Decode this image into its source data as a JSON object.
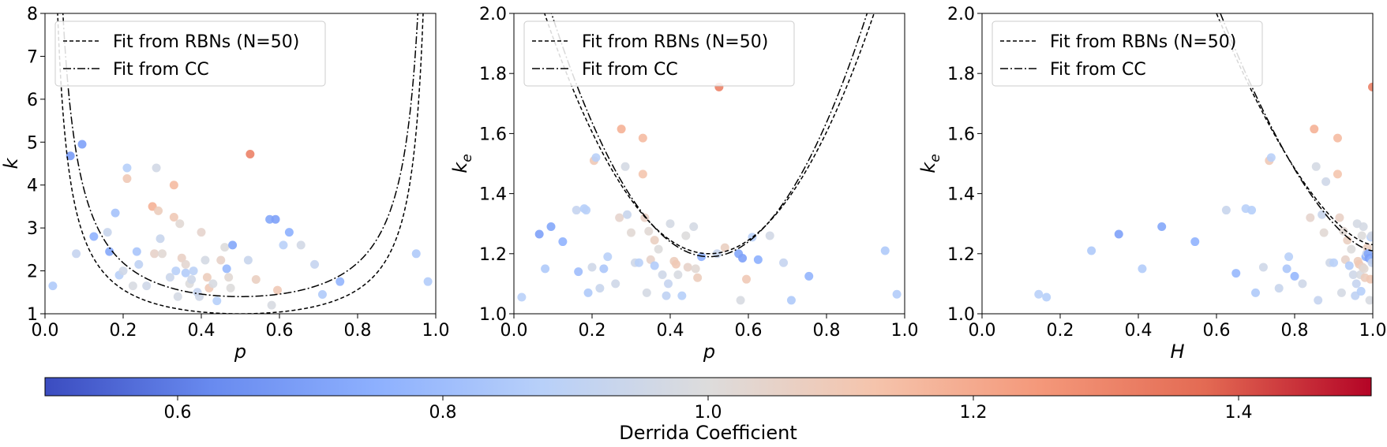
{
  "colorbar": {
    "label": "Derrida Coefficient",
    "min": 0.5,
    "max": 1.5,
    "ticks": [
      "0.6",
      "0.8",
      "1.0",
      "1.2",
      "1.4"
    ],
    "tick_values": [
      0.6,
      0.8,
      1.0,
      1.2,
      1.4
    ],
    "colormap": [
      "#3b4cc0",
      "#688aef",
      "#8db0fe",
      "#b8d0f9",
      "#dddcdc",
      "#f5c4ac",
      "#f4987a",
      "#e36a53",
      "#b40426"
    ]
  },
  "chart_data": [
    {
      "type": "scatter",
      "xlabel": "p",
      "ylabel": "k",
      "ylabel_sub": "",
      "xlim": [
        0,
        1
      ],
      "ylim": [
        1,
        8
      ],
      "xticks": [
        "0.0",
        "0.2",
        "0.4",
        "0.6",
        "0.8",
        "1.0"
      ],
      "xtick_values": [
        0,
        0.2,
        0.4,
        0.6,
        0.8,
        1.0
      ],
      "yticks": [
        "1",
        "2",
        "3",
        "4",
        "5",
        "6",
        "7",
        "8"
      ],
      "ytick_values": [
        1,
        2,
        3,
        4,
        5,
        6,
        7,
        8
      ],
      "legend": {
        "placement": "top-left",
        "entries": [
          "Fit from RBNs (N=50)",
          "Fit from CC"
        ]
      },
      "curves": [
        {
          "name": "Fit from RBNs (N=50)",
          "style": "dashed",
          "formula": "c/(2p(1-p))",
          "c": 1.0
        },
        {
          "name": "Fit from CC",
          "style": "dashdot",
          "formula": "c/(2p(1-p))",
          "c": 1.4
        }
      ],
      "points": [
        {
          "x": 0.02,
          "y": 1.65,
          "c": 0.85
        },
        {
          "x": 0.065,
          "y": 4.68,
          "c": 0.68
        },
        {
          "x": 0.095,
          "y": 4.95,
          "c": 0.7
        },
        {
          "x": 0.08,
          "y": 2.4,
          "c": 0.92
        },
        {
          "x": 0.125,
          "y": 2.8,
          "c": 0.76
        },
        {
          "x": 0.16,
          "y": 2.9,
          "c": 0.93
        },
        {
          "x": 0.165,
          "y": 2.45,
          "c": 0.72
        },
        {
          "x": 0.18,
          "y": 3.35,
          "c": 0.82
        },
        {
          "x": 0.19,
          "y": 1.9,
          "c": 0.88
        },
        {
          "x": 0.2,
          "y": 2.0,
          "c": 0.95
        },
        {
          "x": 0.21,
          "y": 4.4,
          "c": 0.87
        },
        {
          "x": 0.21,
          "y": 4.15,
          "c": 1.1
        },
        {
          "x": 0.225,
          "y": 1.65,
          "c": 0.98
        },
        {
          "x": 0.235,
          "y": 2.45,
          "c": 0.83
        },
        {
          "x": 0.24,
          "y": 2.15,
          "c": 0.9
        },
        {
          "x": 0.26,
          "y": 1.65,
          "c": 0.95
        },
        {
          "x": 0.275,
          "y": 3.5,
          "c": 1.18
        },
        {
          "x": 0.28,
          "y": 2.4,
          "c": 1.05
        },
        {
          "x": 0.285,
          "y": 4.4,
          "c": 0.96
        },
        {
          "x": 0.29,
          "y": 3.4,
          "c": 1.08
        },
        {
          "x": 0.295,
          "y": 2.75,
          "c": 0.93
        },
        {
          "x": 0.3,
          "y": 2.4,
          "c": 1.02
        },
        {
          "x": 0.32,
          "y": 1.85,
          "c": 0.94
        },
        {
          "x": 0.33,
          "y": 4.0,
          "c": 1.15
        },
        {
          "x": 0.33,
          "y": 3.25,
          "c": 1.1
        },
        {
          "x": 0.335,
          "y": 2.0,
          "c": 0.88
        },
        {
          "x": 0.34,
          "y": 1.4,
          "c": 0.97
        },
        {
          "x": 0.345,
          "y": 3.1,
          "c": 1.02
        },
        {
          "x": 0.35,
          "y": 2.3,
          "c": 1.06
        },
        {
          "x": 0.36,
          "y": 2.15,
          "c": 1.03
        },
        {
          "x": 0.36,
          "y": 1.95,
          "c": 0.86
        },
        {
          "x": 0.37,
          "y": 1.7,
          "c": 1.0
        },
        {
          "x": 0.375,
          "y": 1.8,
          "c": 0.95
        },
        {
          "x": 0.38,
          "y": 2.0,
          "c": 0.89
        },
        {
          "x": 0.39,
          "y": 1.5,
          "c": 0.92
        },
        {
          "x": 0.395,
          "y": 1.4,
          "c": 0.95
        },
        {
          "x": 0.4,
          "y": 2.9,
          "c": 1.04
        },
        {
          "x": 0.41,
          "y": 2.25,
          "c": 0.97
        },
        {
          "x": 0.415,
          "y": 1.85,
          "c": 1.08
        },
        {
          "x": 0.42,
          "y": 1.6,
          "c": 1.1
        },
        {
          "x": 0.43,
          "y": 1.7,
          "c": 0.98
        },
        {
          "x": 0.44,
          "y": 1.3,
          "c": 0.87
        },
        {
          "x": 0.45,
          "y": 2.25,
          "c": 1.05
        },
        {
          "x": 0.46,
          "y": 2.55,
          "c": 1.0
        },
        {
          "x": 0.465,
          "y": 2.05,
          "c": 0.78
        },
        {
          "x": 0.47,
          "y": 1.85,
          "c": 1.02
        },
        {
          "x": 0.475,
          "y": 1.6,
          "c": 1.0
        },
        {
          "x": 0.48,
          "y": 2.6,
          "c": 0.72
        },
        {
          "x": 0.52,
          "y": 2.25,
          "c": 0.93
        },
        {
          "x": 0.525,
          "y": 4.72,
          "c": 1.31
        },
        {
          "x": 0.54,
          "y": 1.8,
          "c": 1.07
        },
        {
          "x": 0.575,
          "y": 3.2,
          "c": 0.72
        },
        {
          "x": 0.59,
          "y": 3.2,
          "c": 0.7
        },
        {
          "x": 0.58,
          "y": 1.2,
          "c": 0.98
        },
        {
          "x": 0.595,
          "y": 1.55,
          "c": 1.1
        },
        {
          "x": 0.61,
          "y": 2.6,
          "c": 0.88
        },
        {
          "x": 0.625,
          "y": 2.9,
          "c": 0.75
        },
        {
          "x": 0.655,
          "y": 2.6,
          "c": 0.96
        },
        {
          "x": 0.69,
          "y": 2.15,
          "c": 0.92
        },
        {
          "x": 0.71,
          "y": 1.45,
          "c": 0.85
        },
        {
          "x": 0.755,
          "y": 1.75,
          "c": 0.77
        },
        {
          "x": 0.95,
          "y": 2.4,
          "c": 0.85
        },
        {
          "x": 0.98,
          "y": 1.75,
          "c": 0.86
        }
      ]
    },
    {
      "type": "scatter",
      "xlabel": "p",
      "ylabel": "k",
      "ylabel_sub": "e",
      "xlim": [
        0,
        1
      ],
      "ylim": [
        1,
        2
      ],
      "xticks": [
        "0.0",
        "0.2",
        "0.4",
        "0.6",
        "0.8",
        "1.0"
      ],
      "xtick_values": [
        0,
        0.2,
        0.4,
        0.6,
        0.8,
        1.0
      ],
      "yticks": [
        "1.0",
        "1.2",
        "1.4",
        "1.6",
        "1.8",
        "2.0"
      ],
      "ytick_values": [
        1.0,
        1.2,
        1.4,
        1.6,
        1.8,
        2.0
      ],
      "legend": {
        "placement": "top-left",
        "entries": [
          "Fit from RBNs (N=50)",
          "Fit from CC"
        ]
      },
      "curves": [
        {
          "name": "Fit from RBNs (N=50)",
          "style": "dashed",
          "formula": "1 + c*(p-0.5)^2 + b",
          "c": 4.5,
          "b": 0.2
        },
        {
          "name": "Fit from CC",
          "style": "dashdot",
          "formula": "1 + c*(p-0.5)^2 + b",
          "c": 4.6,
          "b": 0.19
        }
      ],
      "points": [
        {
          "x": 0.02,
          "y": 1.055,
          "c": 0.88
        },
        {
          "x": 0.065,
          "y": 1.265,
          "c": 0.7
        },
        {
          "x": 0.08,
          "y": 1.15,
          "c": 0.85
        },
        {
          "x": 0.095,
          "y": 1.29,
          "c": 0.72
        },
        {
          "x": 0.125,
          "y": 1.24,
          "c": 0.76
        },
        {
          "x": 0.16,
          "y": 1.345,
          "c": 0.92
        },
        {
          "x": 0.165,
          "y": 1.14,
          "c": 0.8
        },
        {
          "x": 0.18,
          "y": 1.35,
          "c": 0.87
        },
        {
          "x": 0.185,
          "y": 1.345,
          "c": 0.88
        },
        {
          "x": 0.19,
          "y": 1.07,
          "c": 0.85
        },
        {
          "x": 0.2,
          "y": 1.155,
          "c": 0.95
        },
        {
          "x": 0.205,
          "y": 1.51,
          "c": 1.1
        },
        {
          "x": 0.21,
          "y": 1.52,
          "c": 0.88
        },
        {
          "x": 0.22,
          "y": 1.085,
          "c": 0.93
        },
        {
          "x": 0.23,
          "y": 1.15,
          "c": 0.84
        },
        {
          "x": 0.24,
          "y": 1.19,
          "c": 0.88
        },
        {
          "x": 0.26,
          "y": 1.1,
          "c": 0.95
        },
        {
          "x": 0.27,
          "y": 1.32,
          "c": 1.04
        },
        {
          "x": 0.275,
          "y": 1.615,
          "c": 1.18
        },
        {
          "x": 0.285,
          "y": 1.49,
          "c": 0.97
        },
        {
          "x": 0.29,
          "y": 1.33,
          "c": 0.93
        },
        {
          "x": 0.3,
          "y": 1.27,
          "c": 1.02
        },
        {
          "x": 0.31,
          "y": 1.17,
          "c": 0.95
        },
        {
          "x": 0.32,
          "y": 1.17,
          "c": 0.88
        },
        {
          "x": 0.33,
          "y": 1.585,
          "c": 1.15
        },
        {
          "x": 0.33,
          "y": 1.465,
          "c": 1.12
        },
        {
          "x": 0.335,
          "y": 1.32,
          "c": 1.06
        },
        {
          "x": 0.34,
          "y": 1.07,
          "c": 0.97
        },
        {
          "x": 0.345,
          "y": 1.275,
          "c": 1.02
        },
        {
          "x": 0.35,
          "y": 1.18,
          "c": 1.05
        },
        {
          "x": 0.36,
          "y": 1.245,
          "c": 1.07
        },
        {
          "x": 0.36,
          "y": 1.16,
          "c": 0.86
        },
        {
          "x": 0.37,
          "y": 1.215,
          "c": 1.0
        },
        {
          "x": 0.38,
          "y": 1.13,
          "c": 0.95
        },
        {
          "x": 0.39,
          "y": 1.06,
          "c": 0.9
        },
        {
          "x": 0.395,
          "y": 1.1,
          "c": 0.92
        },
        {
          "x": 0.4,
          "y": 1.3,
          "c": 0.97
        },
        {
          "x": 0.41,
          "y": 1.175,
          "c": 1.08
        },
        {
          "x": 0.415,
          "y": 1.165,
          "c": 1.1
        },
        {
          "x": 0.42,
          "y": 1.13,
          "c": 0.98
        },
        {
          "x": 0.43,
          "y": 1.06,
          "c": 0.87
        },
        {
          "x": 0.44,
          "y": 1.26,
          "c": 1.0
        },
        {
          "x": 0.445,
          "y": 1.155,
          "c": 1.05
        },
        {
          "x": 0.46,
          "y": 1.29,
          "c": 0.97
        },
        {
          "x": 0.465,
          "y": 1.15,
          "c": 1.02
        },
        {
          "x": 0.47,
          "y": 1.12,
          "c": 1.08
        },
        {
          "x": 0.48,
          "y": 1.19,
          "c": 0.75
        },
        {
          "x": 0.52,
          "y": 1.2,
          "c": 0.93
        },
        {
          "x": 0.525,
          "y": 1.755,
          "c": 1.31
        },
        {
          "x": 0.54,
          "y": 1.22,
          "c": 1.07
        },
        {
          "x": 0.575,
          "y": 1.2,
          "c": 0.72
        },
        {
          "x": 0.585,
          "y": 1.185,
          "c": 0.7
        },
        {
          "x": 0.58,
          "y": 1.045,
          "c": 0.98
        },
        {
          "x": 0.595,
          "y": 1.115,
          "c": 1.1
        },
        {
          "x": 0.61,
          "y": 1.255,
          "c": 0.88
        },
        {
          "x": 0.625,
          "y": 1.18,
          "c": 0.75
        },
        {
          "x": 0.655,
          "y": 1.26,
          "c": 0.96
        },
        {
          "x": 0.69,
          "y": 1.17,
          "c": 0.92
        },
        {
          "x": 0.71,
          "y": 1.045,
          "c": 0.85
        },
        {
          "x": 0.755,
          "y": 1.125,
          "c": 0.77
        },
        {
          "x": 0.95,
          "y": 1.21,
          "c": 0.85
        },
        {
          "x": 0.98,
          "y": 1.065,
          "c": 0.86
        }
      ]
    },
    {
      "type": "scatter",
      "xlabel": "H",
      "ylabel": "k",
      "ylabel_sub": "e",
      "xlim": [
        0,
        1
      ],
      "ylim": [
        1,
        2
      ],
      "xticks": [
        "0.0",
        "0.2",
        "0.4",
        "0.6",
        "0.8",
        "1.0"
      ],
      "xtick_values": [
        0,
        0.2,
        0.4,
        0.6,
        0.8,
        1.0
      ],
      "yticks": [
        "1.0",
        "1.2",
        "1.4",
        "1.6",
        "1.8",
        "2.0"
      ],
      "ytick_values": [
        1.0,
        1.2,
        1.4,
        1.6,
        1.8,
        2.0
      ],
      "legend": {
        "placement": "top-left",
        "entries": [
          "Fit from RBNs (N=50)",
          "Fit from CC"
        ]
      },
      "curves": [
        {
          "name": "Fit from RBNs (N=50)",
          "style": "dashed",
          "x_from": 0.6,
          "x_to": 1.0,
          "y_top": 2.0,
          "y_end": 1.23
        },
        {
          "name": "Fit from CC",
          "style": "dashdot",
          "x_from": 0.61,
          "x_to": 1.0,
          "y_top": 2.0,
          "y_end": 1.21
        }
      ],
      "points": [
        {
          "x": 0.145,
          "y": 1.065,
          "c": 0.88
        },
        {
          "x": 0.165,
          "y": 1.055,
          "c": 0.87
        },
        {
          "x": 0.28,
          "y": 1.21,
          "c": 0.85
        },
        {
          "x": 0.35,
          "y": 1.265,
          "c": 0.7
        },
        {
          "x": 0.41,
          "y": 1.15,
          "c": 0.86
        },
        {
          "x": 0.46,
          "y": 1.29,
          "c": 0.72
        },
        {
          "x": 0.545,
          "y": 1.24,
          "c": 0.76
        },
        {
          "x": 0.625,
          "y": 1.345,
          "c": 0.93
        },
        {
          "x": 0.65,
          "y": 1.135,
          "c": 0.78
        },
        {
          "x": 0.675,
          "y": 1.35,
          "c": 0.88
        },
        {
          "x": 0.69,
          "y": 1.345,
          "c": 0.87
        },
        {
          "x": 0.7,
          "y": 1.07,
          "c": 0.85
        },
        {
          "x": 0.72,
          "y": 1.155,
          "c": 0.95
        },
        {
          "x": 0.735,
          "y": 1.51,
          "c": 1.1
        },
        {
          "x": 0.74,
          "y": 1.52,
          "c": 0.88
        },
        {
          "x": 0.76,
          "y": 1.085,
          "c": 0.93
        },
        {
          "x": 0.78,
          "y": 1.15,
          "c": 0.84
        },
        {
          "x": 0.785,
          "y": 1.19,
          "c": 0.88
        },
        {
          "x": 0.8,
          "y": 1.125,
          "c": 0.78
        },
        {
          "x": 0.82,
          "y": 1.1,
          "c": 0.95
        },
        {
          "x": 0.84,
          "y": 1.32,
          "c": 1.04
        },
        {
          "x": 0.85,
          "y": 1.615,
          "c": 1.18
        },
        {
          "x": 0.855,
          "y": 1.49,
          "c": 0.97
        },
        {
          "x": 0.86,
          "y": 1.045,
          "c": 0.92
        },
        {
          "x": 0.87,
          "y": 1.33,
          "c": 0.93
        },
        {
          "x": 0.875,
          "y": 1.27,
          "c": 1.02
        },
        {
          "x": 0.88,
          "y": 1.44,
          "c": 0.95
        },
        {
          "x": 0.89,
          "y": 1.17,
          "c": 0.95
        },
        {
          "x": 0.9,
          "y": 1.17,
          "c": 0.88
        },
        {
          "x": 0.91,
          "y": 1.585,
          "c": 1.15
        },
        {
          "x": 0.91,
          "y": 1.465,
          "c": 1.12
        },
        {
          "x": 0.915,
          "y": 1.32,
          "c": 1.06
        },
        {
          "x": 0.92,
          "y": 1.07,
          "c": 0.97
        },
        {
          "x": 0.925,
          "y": 1.275,
          "c": 1.02
        },
        {
          "x": 0.93,
          "y": 1.18,
          "c": 1.05
        },
        {
          "x": 0.935,
          "y": 1.245,
          "c": 1.07
        },
        {
          "x": 0.94,
          "y": 1.16,
          "c": 0.86
        },
        {
          "x": 0.945,
          "y": 1.215,
          "c": 1.0
        },
        {
          "x": 0.95,
          "y": 1.13,
          "c": 0.95
        },
        {
          "x": 0.955,
          "y": 1.06,
          "c": 0.9
        },
        {
          "x": 0.958,
          "y": 1.1,
          "c": 0.92
        },
        {
          "x": 0.96,
          "y": 1.3,
          "c": 0.97
        },
        {
          "x": 0.962,
          "y": 1.175,
          "c": 1.08
        },
        {
          "x": 0.965,
          "y": 1.165,
          "c": 1.1
        },
        {
          "x": 0.968,
          "y": 1.13,
          "c": 0.98
        },
        {
          "x": 0.97,
          "y": 1.075,
          "c": 0.87
        },
        {
          "x": 0.972,
          "y": 1.26,
          "c": 1.0
        },
        {
          "x": 0.974,
          "y": 1.155,
          "c": 1.05
        },
        {
          "x": 0.976,
          "y": 1.29,
          "c": 0.97
        },
        {
          "x": 0.978,
          "y": 1.15,
          "c": 1.02
        },
        {
          "x": 0.98,
          "y": 1.12,
          "c": 1.08
        },
        {
          "x": 0.982,
          "y": 1.19,
          "c": 0.75
        },
        {
          "x": 0.984,
          "y": 1.2,
          "c": 0.93
        },
        {
          "x": 0.986,
          "y": 1.22,
          "c": 1.07
        },
        {
          "x": 0.988,
          "y": 1.2,
          "c": 0.72
        },
        {
          "x": 0.99,
          "y": 1.185,
          "c": 0.7
        },
        {
          "x": 0.992,
          "y": 1.045,
          "c": 0.98
        },
        {
          "x": 0.994,
          "y": 1.115,
          "c": 1.1
        },
        {
          "x": 0.995,
          "y": 1.255,
          "c": 0.88
        },
        {
          "x": 0.996,
          "y": 1.18,
          "c": 0.75
        },
        {
          "x": 0.997,
          "y": 1.26,
          "c": 0.96
        },
        {
          "x": 0.998,
          "y": 1.17,
          "c": 0.92
        },
        {
          "x": 0.999,
          "y": 1.755,
          "c": 1.31
        }
      ]
    }
  ]
}
